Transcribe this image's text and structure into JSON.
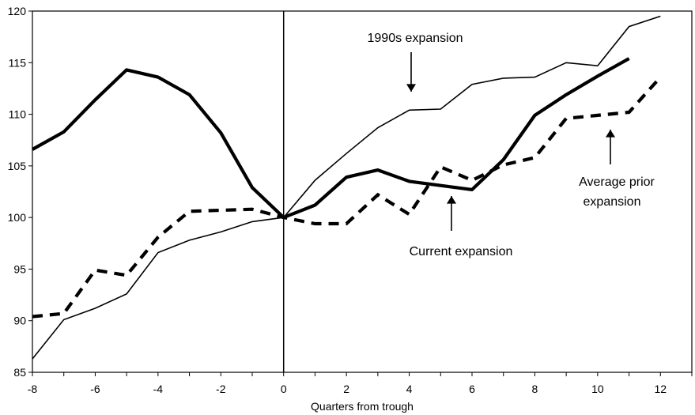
{
  "chart_data": {
    "type": "line",
    "xlabel": "Quarters from trough",
    "ylabel": "",
    "xlim": [
      -8,
      13
    ],
    "ylim": [
      85,
      120
    ],
    "x_ticks": [
      "-8",
      "-6",
      "-4",
      "-2",
      "0",
      "2",
      "4",
      "6",
      "8",
      "10",
      "12"
    ],
    "y_ticks": [
      "85",
      "90",
      "95",
      "100",
      "105",
      "110",
      "115",
      "120"
    ],
    "grid": false,
    "vertical_reference_x": 0,
    "series": [
      {
        "name": "1990s expansion",
        "style": "thin",
        "x": [
          -8,
          -7,
          -6,
          -5,
          -4,
          -3,
          -2,
          -1,
          0,
          1,
          2,
          3,
          4,
          5,
          6,
          7,
          8,
          9,
          10,
          11,
          12
        ],
        "values": [
          86.3,
          90.1,
          91.2,
          92.6,
          96.6,
          97.8,
          98.6,
          99.6,
          100.0,
          103.6,
          106.2,
          108.7,
          110.4,
          110.5,
          112.9,
          113.5,
          113.6,
          115.0,
          114.7,
          118.5,
          119.5
        ]
      },
      {
        "name": "Current expansion",
        "style": "thick",
        "x": [
          -8,
          -7,
          -6,
          -5,
          -4,
          -3,
          -2,
          -1,
          0,
          1,
          2,
          3,
          4,
          5,
          6,
          7,
          8,
          9,
          10,
          11
        ],
        "values": [
          106.6,
          108.3,
          111.4,
          114.3,
          113.6,
          111.9,
          108.2,
          102.9,
          100.0,
          101.2,
          103.9,
          104.6,
          103.5,
          103.1,
          102.7,
          105.6,
          109.9,
          111.9,
          113.7,
          115.4
        ]
      },
      {
        "name": "Average prior expansion",
        "style": "dashed",
        "x": [
          -8,
          -7,
          -6,
          -5,
          -4,
          -3,
          -2,
          -1,
          0,
          1,
          2,
          3,
          4,
          5,
          6,
          7,
          8,
          9,
          10,
          11,
          12
        ],
        "values": [
          90.4,
          90.7,
          94.9,
          94.4,
          98.1,
          100.6,
          100.7,
          100.8,
          100.0,
          99.4,
          99.4,
          102.2,
          100.3,
          104.9,
          103.6,
          105.1,
          105.8,
          109.6,
          109.9,
          110.2,
          113.6
        ]
      }
    ],
    "annotations": [
      {
        "text": "1990s expansion",
        "points_to_series": "1990s expansion",
        "arrow": "down"
      },
      {
        "text": "Current expansion",
        "points_to_series": "Current expansion",
        "arrow": "up"
      },
      {
        "text": "Average prior",
        "points_to_series": "Average prior expansion",
        "arrow": "up"
      },
      {
        "text": "expansion",
        "points_to_series": "Average prior expansion",
        "arrow": "none"
      }
    ]
  }
}
